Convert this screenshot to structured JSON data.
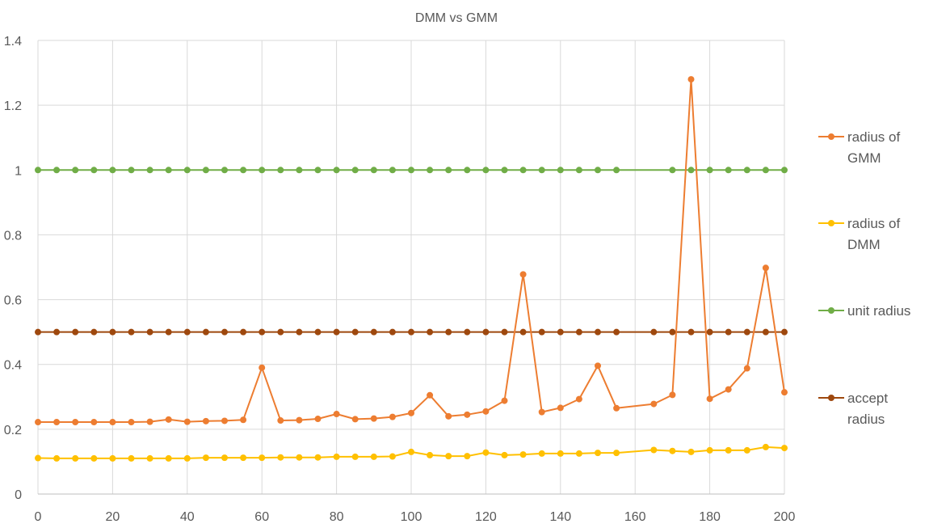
{
  "chart_data": {
    "type": "line",
    "title": "DMM vs GMM",
    "xlabel": "",
    "ylabel": "",
    "xlim": [
      0,
      200
    ],
    "ylim": [
      0,
      1.4
    ],
    "x_ticks": [
      "0",
      "20",
      "40",
      "60",
      "80",
      "100",
      "120",
      "140",
      "160",
      "180",
      "200"
    ],
    "y_ticks": [
      "0",
      "0.2",
      "0.4",
      "0.6",
      "0.8",
      "1",
      "1.2",
      "1.4"
    ],
    "grid": true,
    "legend_position": "right",
    "series": [
      {
        "name": "radius of GMM",
        "color": "#ED7D31",
        "x": [
          0,
          5,
          10,
          15,
          20,
          25,
          30,
          35,
          40,
          45,
          50,
          55,
          60,
          65,
          70,
          75,
          80,
          85,
          90,
          95,
          100,
          105,
          110,
          115,
          120,
          125,
          130,
          135,
          140,
          145,
          150,
          155,
          165,
          170,
          175,
          180,
          185,
          190,
          195,
          200
        ],
        "y": [
          0.222,
          0.222,
          0.222,
          0.222,
          0.222,
          0.222,
          0.223,
          0.23,
          0.223,
          0.225,
          0.226,
          0.229,
          0.39,
          0.227,
          0.228,
          0.232,
          0.247,
          0.231,
          0.233,
          0.238,
          0.25,
          0.305,
          0.24,
          0.245,
          0.255,
          0.288,
          0.678,
          0.253,
          0.266,
          0.293,
          0.396,
          0.265,
          0.278,
          0.306,
          1.28,
          0.294,
          0.323,
          0.388,
          0.698,
          0.314
        ]
      },
      {
        "name": "radius of DMM",
        "color": "#FFC000",
        "x": [
          0,
          5,
          10,
          15,
          20,
          25,
          30,
          35,
          40,
          45,
          50,
          55,
          60,
          65,
          70,
          75,
          80,
          85,
          90,
          95,
          100,
          105,
          110,
          115,
          120,
          125,
          130,
          135,
          140,
          145,
          150,
          155,
          165,
          170,
          175,
          180,
          185,
          190,
          195,
          200
        ],
        "y": [
          0.111,
          0.11,
          0.11,
          0.11,
          0.11,
          0.11,
          0.11,
          0.11,
          0.11,
          0.112,
          0.112,
          0.112,
          0.112,
          0.113,
          0.113,
          0.113,
          0.115,
          0.115,
          0.115,
          0.116,
          0.13,
          0.12,
          0.117,
          0.117,
          0.128,
          0.12,
          0.122,
          0.125,
          0.125,
          0.125,
          0.127,
          0.127,
          0.136,
          0.133,
          0.13,
          0.135,
          0.135,
          0.135,
          0.145,
          0.142
        ]
      },
      {
        "name": "unit radius",
        "color": "#70AD47",
        "x": [
          0,
          5,
          10,
          15,
          20,
          25,
          30,
          35,
          40,
          45,
          50,
          55,
          60,
          65,
          70,
          75,
          80,
          85,
          90,
          95,
          100,
          105,
          110,
          115,
          120,
          125,
          130,
          135,
          140,
          145,
          150,
          155,
          170,
          175,
          180,
          185,
          190,
          195,
          200
        ],
        "y": [
          1,
          1,
          1,
          1,
          1,
          1,
          1,
          1,
          1,
          1,
          1,
          1,
          1,
          1,
          1,
          1,
          1,
          1,
          1,
          1,
          1,
          1,
          1,
          1,
          1,
          1,
          1,
          1,
          1,
          1,
          1,
          1,
          1,
          1,
          1,
          1,
          1,
          1,
          1
        ]
      },
      {
        "name": "accept radius",
        "color": "#9E480E",
        "x": [
          0,
          5,
          10,
          15,
          20,
          25,
          30,
          35,
          40,
          45,
          50,
          55,
          60,
          65,
          70,
          75,
          80,
          85,
          90,
          95,
          100,
          105,
          110,
          115,
          120,
          125,
          130,
          135,
          140,
          145,
          150,
          155,
          165,
          170,
          175,
          180,
          185,
          190,
          195,
          200
        ],
        "y": [
          0.5,
          0.5,
          0.5,
          0.5,
          0.5,
          0.5,
          0.5,
          0.5,
          0.5,
          0.5,
          0.5,
          0.5,
          0.5,
          0.5,
          0.5,
          0.5,
          0.5,
          0.5,
          0.5,
          0.5,
          0.5,
          0.5,
          0.5,
          0.5,
          0.5,
          0.5,
          0.5,
          0.5,
          0.5,
          0.5,
          0.5,
          0.5,
          0.5,
          0.5,
          0.5,
          0.5,
          0.5,
          0.5,
          0.5,
          0.5
        ]
      }
    ],
    "legend": [
      {
        "label_lines": [
          "radius of",
          "GMM"
        ],
        "color": "#ED7D31"
      },
      {
        "label_lines": [
          "radius of",
          "DMM"
        ],
        "color": "#FFC000"
      },
      {
        "label_lines": [
          "unit radius"
        ],
        "color": "#70AD47"
      },
      {
        "label_lines": [
          "accept",
          "radius"
        ],
        "color": "#9E480E"
      }
    ]
  }
}
